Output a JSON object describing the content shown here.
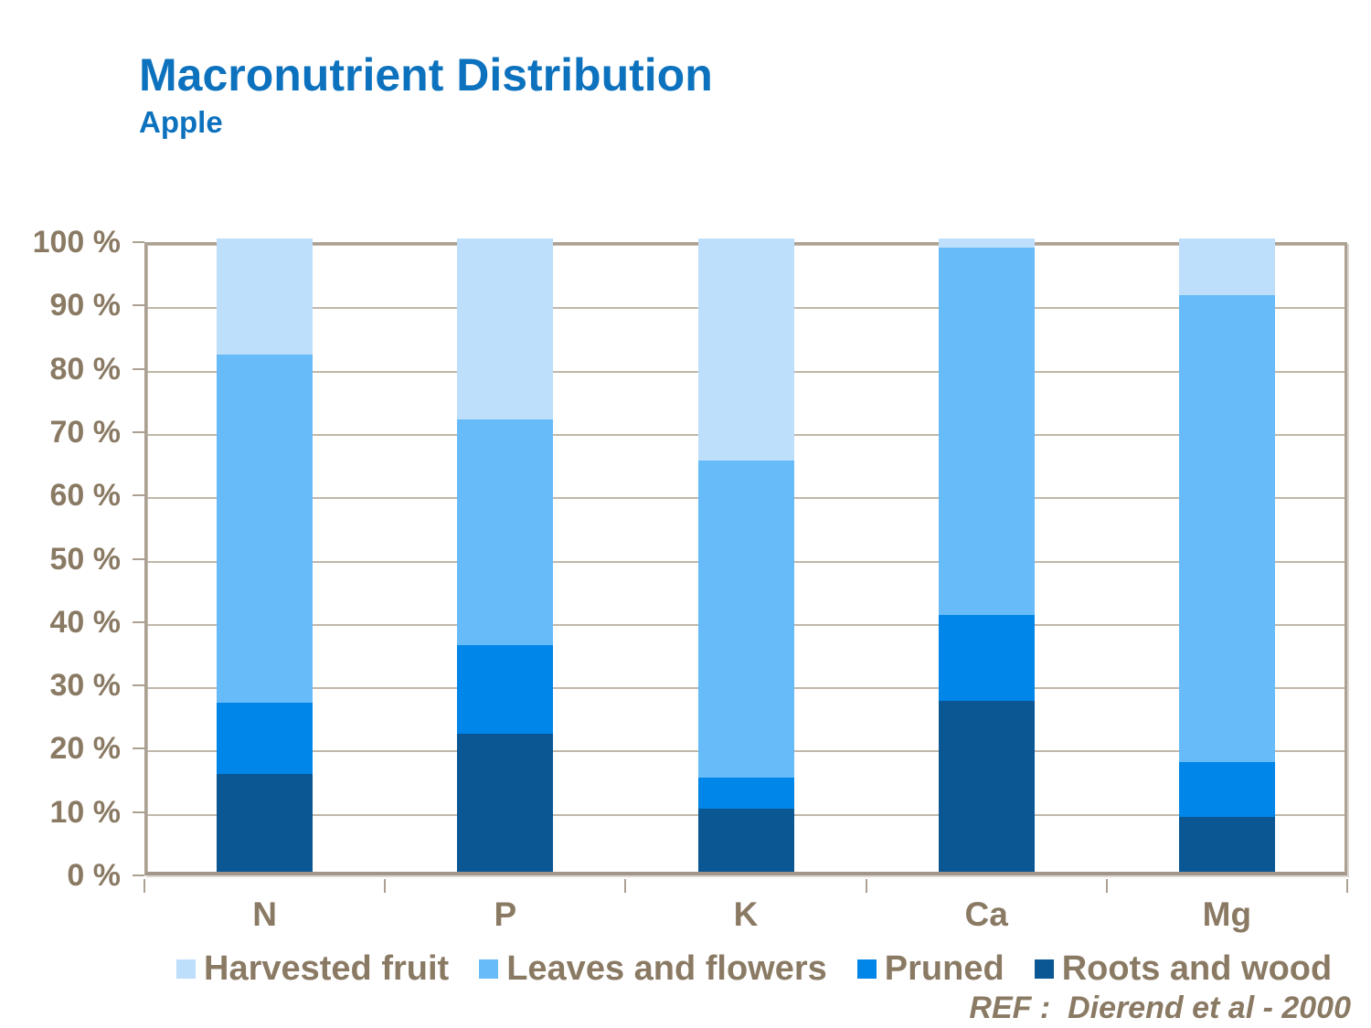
{
  "header": {
    "title": "Macronutrient Distribution",
    "subtitle": "Apple"
  },
  "chart_data": {
    "type": "bar",
    "subtype": "stacked-percent",
    "title": "Macronutrient Distribution",
    "subtitle": "Apple",
    "categories": [
      "N",
      "P",
      "K",
      "Ca",
      "Mg"
    ],
    "series": [
      {
        "name": "Roots and wood",
        "color": "#0A5794",
        "values": [
          15.4,
          21.8,
          10.0,
          27.0,
          8.7
        ]
      },
      {
        "name": "Pruned",
        "color": "#0086E8",
        "values": [
          11.3,
          14.0,
          4.9,
          13.5,
          8.6
        ]
      },
      {
        "name": "Leaves and flowers",
        "color": "#67BBF9",
        "values": [
          55.0,
          35.7,
          50.0,
          58.0,
          73.8
        ]
      },
      {
        "name": "Harvested fruit",
        "color": "#BDDFFB",
        "values": [
          18.3,
          28.5,
          35.1,
          1.5,
          8.9
        ]
      }
    ],
    "legend_order": [
      "Harvested fruit",
      "Leaves and flowers",
      "Pruned",
      "Roots and wood"
    ],
    "legend_position": "bottom",
    "grid": true,
    "xlabel": "",
    "ylabel": "",
    "ylim": [
      0,
      100
    ],
    "y_axis": {
      "min": 0,
      "max": 100,
      "step": 10,
      "tick_suffix": " %"
    }
  },
  "footer": {
    "ref_label": "REF :  Dierend et al - 2000"
  },
  "colors": {
    "title_blue": "#0D72BE",
    "axis_text": "#8A7A64",
    "grid_line": "#B5AA9B",
    "frame": "#ACA092"
  }
}
